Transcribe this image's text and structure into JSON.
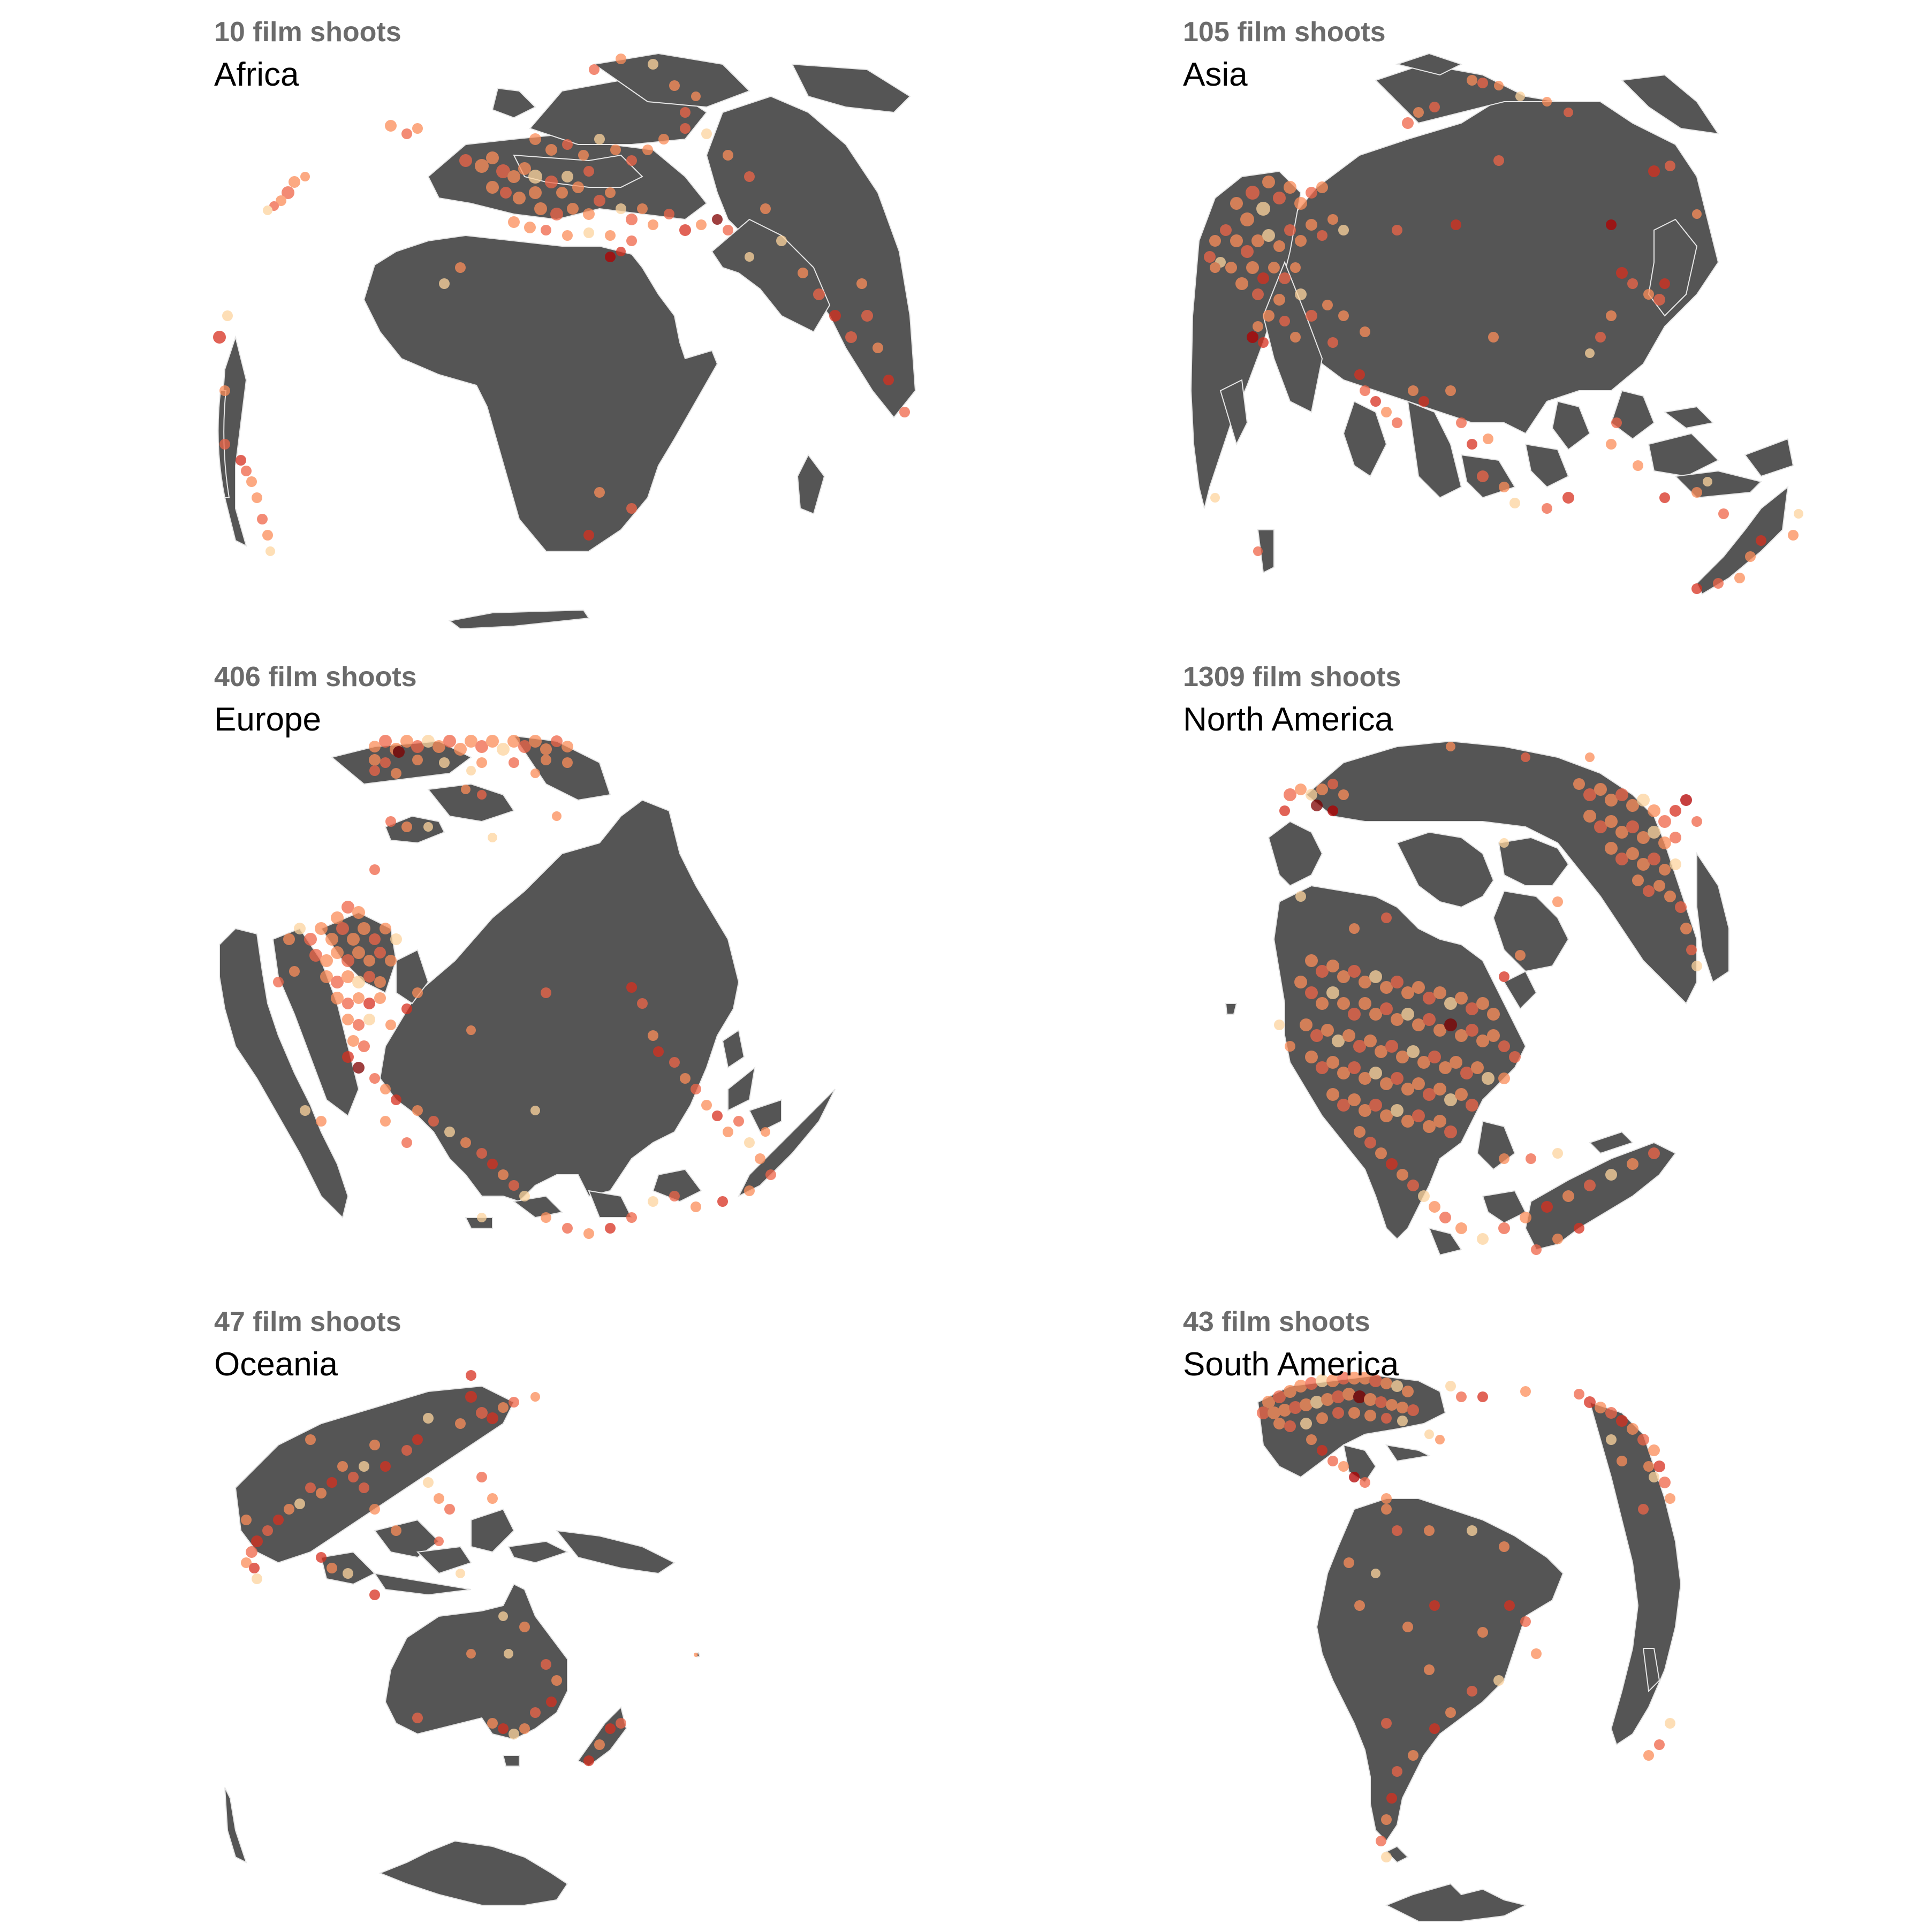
{
  "colors": {
    "land": "#555555",
    "borders": "#e6e6e6",
    "background": "#ffffff",
    "point_scale": [
      "#fdd49e",
      "#fc8d59",
      "#ef6548",
      "#d7301f",
      "#b30000",
      "#7f0000"
    ]
  },
  "panels": [
    {
      "id": "africa",
      "count_label": "10 film shoots",
      "region_label": "Africa"
    },
    {
      "id": "asia",
      "count_label": "105 film shoots",
      "region_label": "Asia"
    },
    {
      "id": "europe",
      "count_label": "406 film shoots",
      "region_label": "Europe"
    },
    {
      "id": "north-america",
      "count_label": "1309 film shoots",
      "region_label": "North America"
    },
    {
      "id": "oceania",
      "count_label": "47 film shoots",
      "region_label": "Oceania"
    },
    {
      "id": "south-america",
      "count_label": "43 film shoots",
      "region_label": "South America"
    }
  ]
}
